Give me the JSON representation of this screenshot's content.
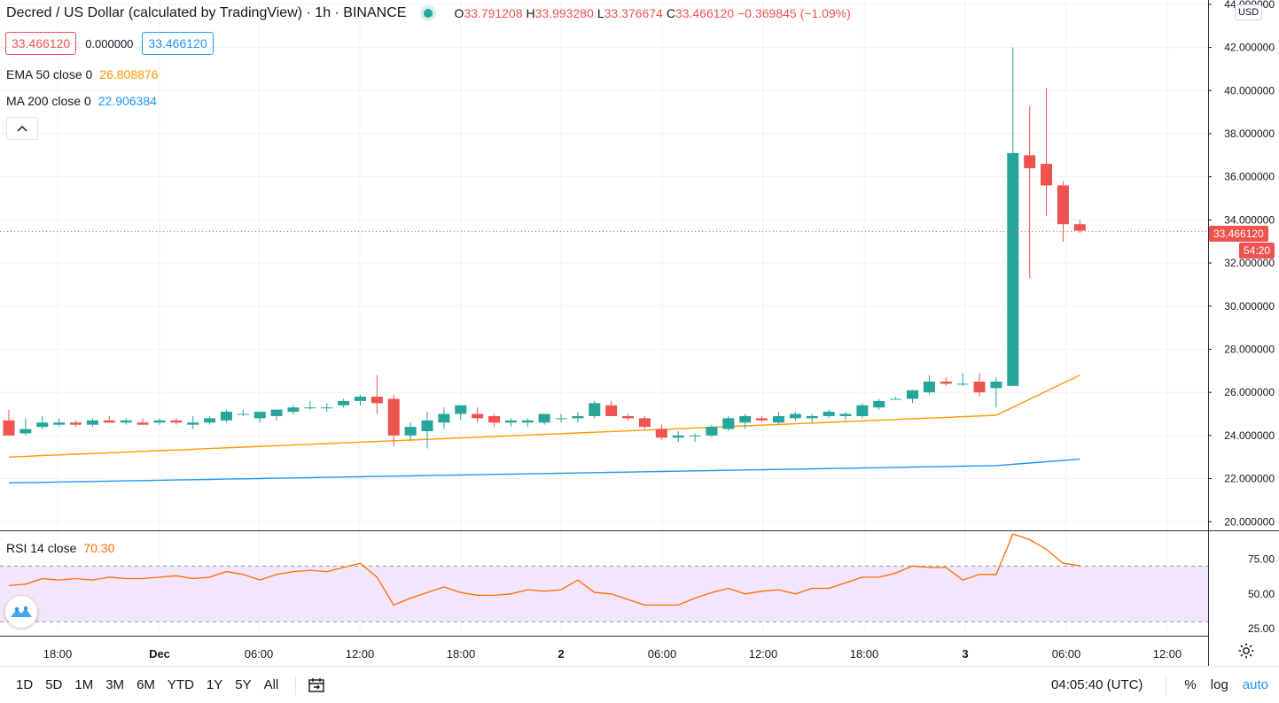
{
  "header": {
    "title": "Decred / US Dollar (calculated by TradingView) · 1h · BINANCE",
    "ohlc": [
      {
        "k": "O",
        "v": "33.791208"
      },
      {
        "k": "H",
        "v": "33.993280"
      },
      {
        "k": "L",
        "v": "33.376674"
      },
      {
        "k": "C",
        "v": "33.466120"
      }
    ],
    "change": "−0.369845 (−1.09%)",
    "bid": "33.466120",
    "spread": "0.000000",
    "ask": "33.466120"
  },
  "indicators": [
    {
      "name": "EMA 50 close 0",
      "value": "26.808876",
      "color": "#ff9800"
    },
    {
      "name": "MA 200 close 0",
      "value": "22.906384",
      "color": "#2196f3"
    }
  ],
  "rsi": {
    "name": "RSI 14 close",
    "value": "70.30",
    "color": "#ff6d00",
    "band_fill": "#f3e5fb"
  },
  "price_axis": {
    "currency": "USD",
    "last_price_label": "33.466120",
    "countdown": "54:20"
  },
  "bottom": {
    "ranges": [
      "1D",
      "5D",
      "1M",
      "3M",
      "6M",
      "YTD",
      "1Y",
      "5Y",
      "All"
    ],
    "clock": "04:05:40 (UTC)",
    "options": [
      "%",
      "log",
      "auto"
    ],
    "active_option": "auto"
  },
  "icons": [
    "green-live-dot-icon",
    "chevron-up-icon",
    "tradingview-logo-icon",
    "calendar-range-icon",
    "gear-icon"
  ],
  "chart_data": [
    {
      "type": "candlestick",
      "title": "Decred / US Dollar (calculated by TradingView) · 1h · BINANCE",
      "ylim": [
        19.6,
        44.2
      ],
      "y_ticks": [
        20,
        22,
        24,
        26,
        28,
        30,
        32,
        34,
        36,
        38,
        40,
        42,
        44
      ],
      "y_tick_labels": [
        "20.000000",
        "22.000000",
        "24.000000",
        "26.000000",
        "28.000000",
        "30.000000",
        "32.000000",
        "34.000000",
        "36.000000",
        "38.000000",
        "40.000000",
        "42.000000",
        "44.000000"
      ],
      "x_tick_labels": [
        "18:00",
        "Dec",
        "06:00",
        "12:00",
        "18:00",
        "2",
        "06:00",
        "12:00",
        "18:00",
        "3",
        "06:00",
        "12:00"
      ],
      "grid": true,
      "ohlc": [
        [
          24.7,
          25.2,
          24.0,
          24.0
        ],
        [
          24.1,
          24.8,
          24.0,
          24.3
        ],
        [
          24.4,
          24.9,
          24.3,
          24.6
        ],
        [
          24.5,
          24.8,
          24.4,
          24.6
        ],
        [
          24.6,
          24.7,
          24.4,
          24.5
        ],
        [
          24.5,
          24.8,
          24.4,
          24.7
        ],
        [
          24.7,
          24.9,
          24.6,
          24.6
        ],
        [
          24.6,
          24.8,
          24.5,
          24.7
        ],
        [
          24.6,
          24.8,
          24.5,
          24.5
        ],
        [
          24.6,
          24.8,
          24.5,
          24.7
        ],
        [
          24.7,
          24.8,
          24.5,
          24.6
        ],
        [
          24.5,
          24.9,
          24.3,
          24.6
        ],
        [
          24.6,
          24.9,
          24.5,
          24.8
        ],
        [
          24.7,
          25.2,
          24.6,
          25.1
        ],
        [
          25.0,
          25.2,
          24.9,
          25.0
        ],
        [
          24.8,
          25.1,
          24.6,
          25.1
        ],
        [
          24.9,
          25.2,
          24.7,
          25.2
        ],
        [
          25.1,
          25.4,
          25.0,
          25.3
        ],
        [
          25.3,
          25.6,
          25.2,
          25.3
        ],
        [
          25.3,
          25.5,
          25.1,
          25.3
        ],
        [
          25.4,
          25.7,
          25.3,
          25.6
        ],
        [
          25.6,
          25.9,
          25.4,
          25.8
        ],
        [
          25.8,
          26.8,
          25.0,
          25.5
        ],
        [
          25.7,
          25.9,
          23.5,
          24.0
        ],
        [
          24.0,
          24.6,
          23.8,
          24.4
        ],
        [
          24.2,
          25.1,
          23.4,
          24.7
        ],
        [
          24.6,
          25.3,
          24.3,
          25.0
        ],
        [
          25.0,
          25.3,
          24.7,
          25.4
        ],
        [
          25.0,
          25.3,
          24.6,
          24.8
        ],
        [
          24.9,
          25.0,
          24.4,
          24.6
        ],
        [
          24.6,
          24.8,
          24.4,
          24.7
        ],
        [
          24.6,
          24.8,
          24.4,
          24.7
        ],
        [
          24.6,
          25.0,
          24.5,
          25.0
        ],
        [
          24.8,
          25.0,
          24.6,
          24.8
        ],
        [
          24.8,
          25.1,
          24.6,
          24.9
        ],
        [
          24.9,
          25.6,
          24.8,
          25.5
        ],
        [
          25.4,
          25.6,
          24.9,
          24.9
        ],
        [
          24.9,
          25.0,
          24.7,
          24.8
        ],
        [
          24.8,
          24.9,
          24.3,
          24.4
        ],
        [
          24.3,
          24.5,
          23.8,
          23.9
        ],
        [
          23.9,
          24.2,
          23.7,
          24.0
        ],
        [
          24.0,
          24.1,
          23.7,
          24.0
        ],
        [
          24.0,
          24.5,
          23.9,
          24.4
        ],
        [
          24.3,
          24.9,
          24.2,
          24.8
        ],
        [
          24.6,
          25.0,
          24.3,
          24.9
        ],
        [
          24.8,
          24.9,
          24.6,
          24.7
        ],
        [
          24.6,
          25.1,
          24.5,
          24.9
        ],
        [
          24.8,
          25.1,
          24.7,
          25.0
        ],
        [
          24.8,
          25.0,
          24.6,
          24.9
        ],
        [
          24.9,
          25.2,
          24.8,
          25.1
        ],
        [
          24.9,
          25.1,
          24.7,
          25.0
        ],
        [
          24.9,
          25.5,
          24.8,
          25.4
        ],
        [
          25.3,
          25.7,
          25.2,
          25.6
        ],
        [
          25.7,
          25.8,
          25.7,
          25.7
        ],
        [
          25.7,
          26.1,
          25.5,
          26.1
        ],
        [
          26.0,
          26.8,
          25.9,
          26.5
        ],
        [
          26.5,
          26.7,
          26.3,
          26.4
        ],
        [
          26.4,
          26.9,
          26.3,
          26.4
        ],
        [
          26.5,
          26.9,
          25.8,
          26.0
        ],
        [
          26.2,
          26.7,
          25.3,
          26.5
        ],
        [
          26.3,
          42.0,
          26.3,
          37.1
        ],
        [
          37.0,
          39.3,
          31.3,
          36.4
        ],
        [
          36.6,
          40.1,
          34.2,
          35.6
        ],
        [
          35.6,
          35.8,
          33.0,
          33.8
        ],
        [
          33.8,
          34.0,
          33.4,
          33.5
        ]
      ],
      "series": [
        {
          "name": "EMA 50 close 0",
          "values_start_end": [
            23.0,
            26.8
          ],
          "last": 26.808876
        },
        {
          "name": "MA 200 close 0",
          "values_start_end": [
            21.8,
            22.9
          ],
          "last": 22.906384
        }
      ],
      "last_price": 33.46612
    },
    {
      "type": "line",
      "title": "RSI 14 close",
      "ylim": [
        20,
        95
      ],
      "y_ticks": [
        25,
        50,
        75
      ],
      "y_tick_labels": [
        "25.00",
        "50.00",
        "75.00"
      ],
      "bands": [
        30,
        70
      ],
      "values": [
        56,
        57,
        61,
        60,
        61,
        60,
        62,
        61,
        61,
        62,
        63,
        61,
        62,
        66,
        64,
        60,
        64,
        66,
        67,
        66,
        69,
        72,
        62,
        42,
        47,
        51,
        55,
        51,
        49,
        49,
        50,
        53,
        52,
        53,
        60,
        51,
        50,
        46,
        42,
        42,
        42,
        47,
        51,
        54,
        50,
        52,
        53,
        50,
        54,
        54,
        58,
        62,
        62,
        65,
        70,
        69,
        69,
        60,
        64,
        64,
        93,
        89,
        82,
        72,
        70.3
      ]
    }
  ]
}
